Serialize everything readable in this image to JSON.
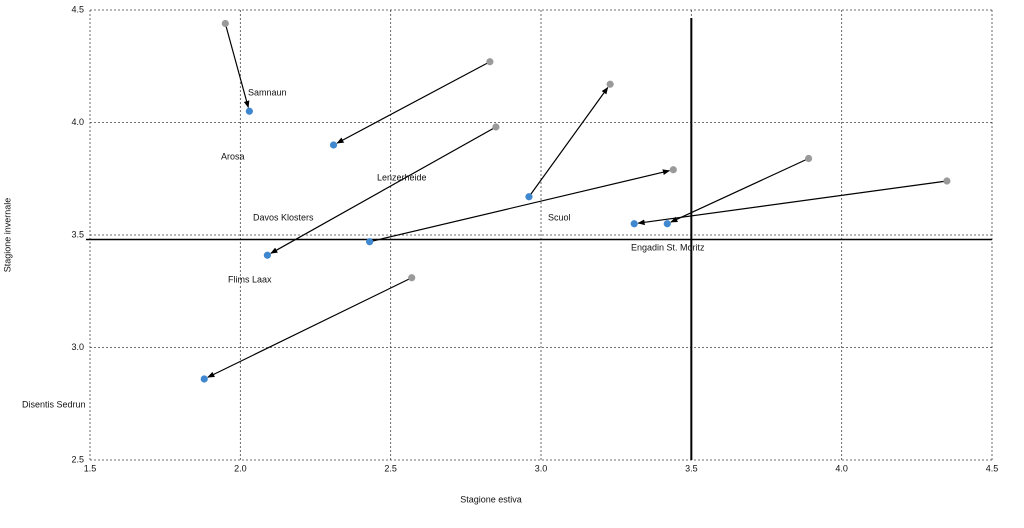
{
  "chart_data": {
    "type": "scatter",
    "x_label": "Stagione estiva",
    "y_label": "Stagione invernale",
    "xlim": [
      1.5,
      4.5
    ],
    "ylim": [
      2.5,
      4.5
    ],
    "xticks": [
      1.5,
      {
        "value": 2,
        "label": "2.0"
      },
      2.5,
      {
        "value": 3,
        "label": "3.0"
      },
      3.5,
      {
        "value": 4,
        "label": "4.0"
      },
      4.5
    ],
    "yticks": [
      2.5,
      {
        "value": 3,
        "label": "3.0"
      },
      3.5,
      {
        "value": 4,
        "label": "4.0"
      },
      4.5
    ],
    "grid": true,
    "reference_lines": {
      "x": 3.5,
      "y": 3.48
    },
    "series": [
      {
        "name": "Samnaun",
        "x": [
          1.95,
          2.03
        ],
        "values": [
          4.44,
          4.05
        ],
        "colors": [
          "#9a9a9a",
          "#3f87cf"
        ]
      },
      {
        "name": "Arosa",
        "x": [
          2.83,
          2.31
        ],
        "values": [
          4.27,
          3.9
        ],
        "colors": [
          "#9a9a9a",
          "#3f87cf"
        ]
      },
      {
        "name": "Davos Klosters",
        "x": [
          2.85,
          2.09
        ],
        "values": [
          3.98,
          3.41
        ],
        "colors": [
          "#9a9a9a",
          "#3f87cf"
        ]
      },
      {
        "name": "Lenzerheide",
        "x": [
          2.43,
          3.44
        ],
        "values": [
          3.47,
          3.79
        ],
        "colors": [
          "#3f87cf",
          "#9a9a9a"
        ]
      },
      {
        "name": "Scuol",
        "x": [
          2.96,
          3.23
        ],
        "values": [
          3.67,
          4.17
        ],
        "colors": [
          "#3f87cf",
          "#9a9a9a"
        ]
      },
      {
        "name": "Engadin St. Moritz",
        "x": [
          3.89,
          3.42
        ],
        "values": [
          3.84,
          3.55
        ],
        "colors": [
          "#9a9a9a",
          "#3f87cf"
        ]
      },
      {
        "name": "Flims Laax",
        "x": [
          4.35,
          3.31
        ],
        "values": [
          3.74,
          3.55
        ],
        "colors": [
          "#9a9a9a",
          "#3f87cf"
        ]
      },
      {
        "name": "Disentis Sedrun",
        "x": [
          2.57,
          1.88
        ],
        "values": [
          3.31,
          2.86
        ],
        "colors": [
          "#9a9a9a",
          "#3f87cf"
        ]
      }
    ]
  }
}
